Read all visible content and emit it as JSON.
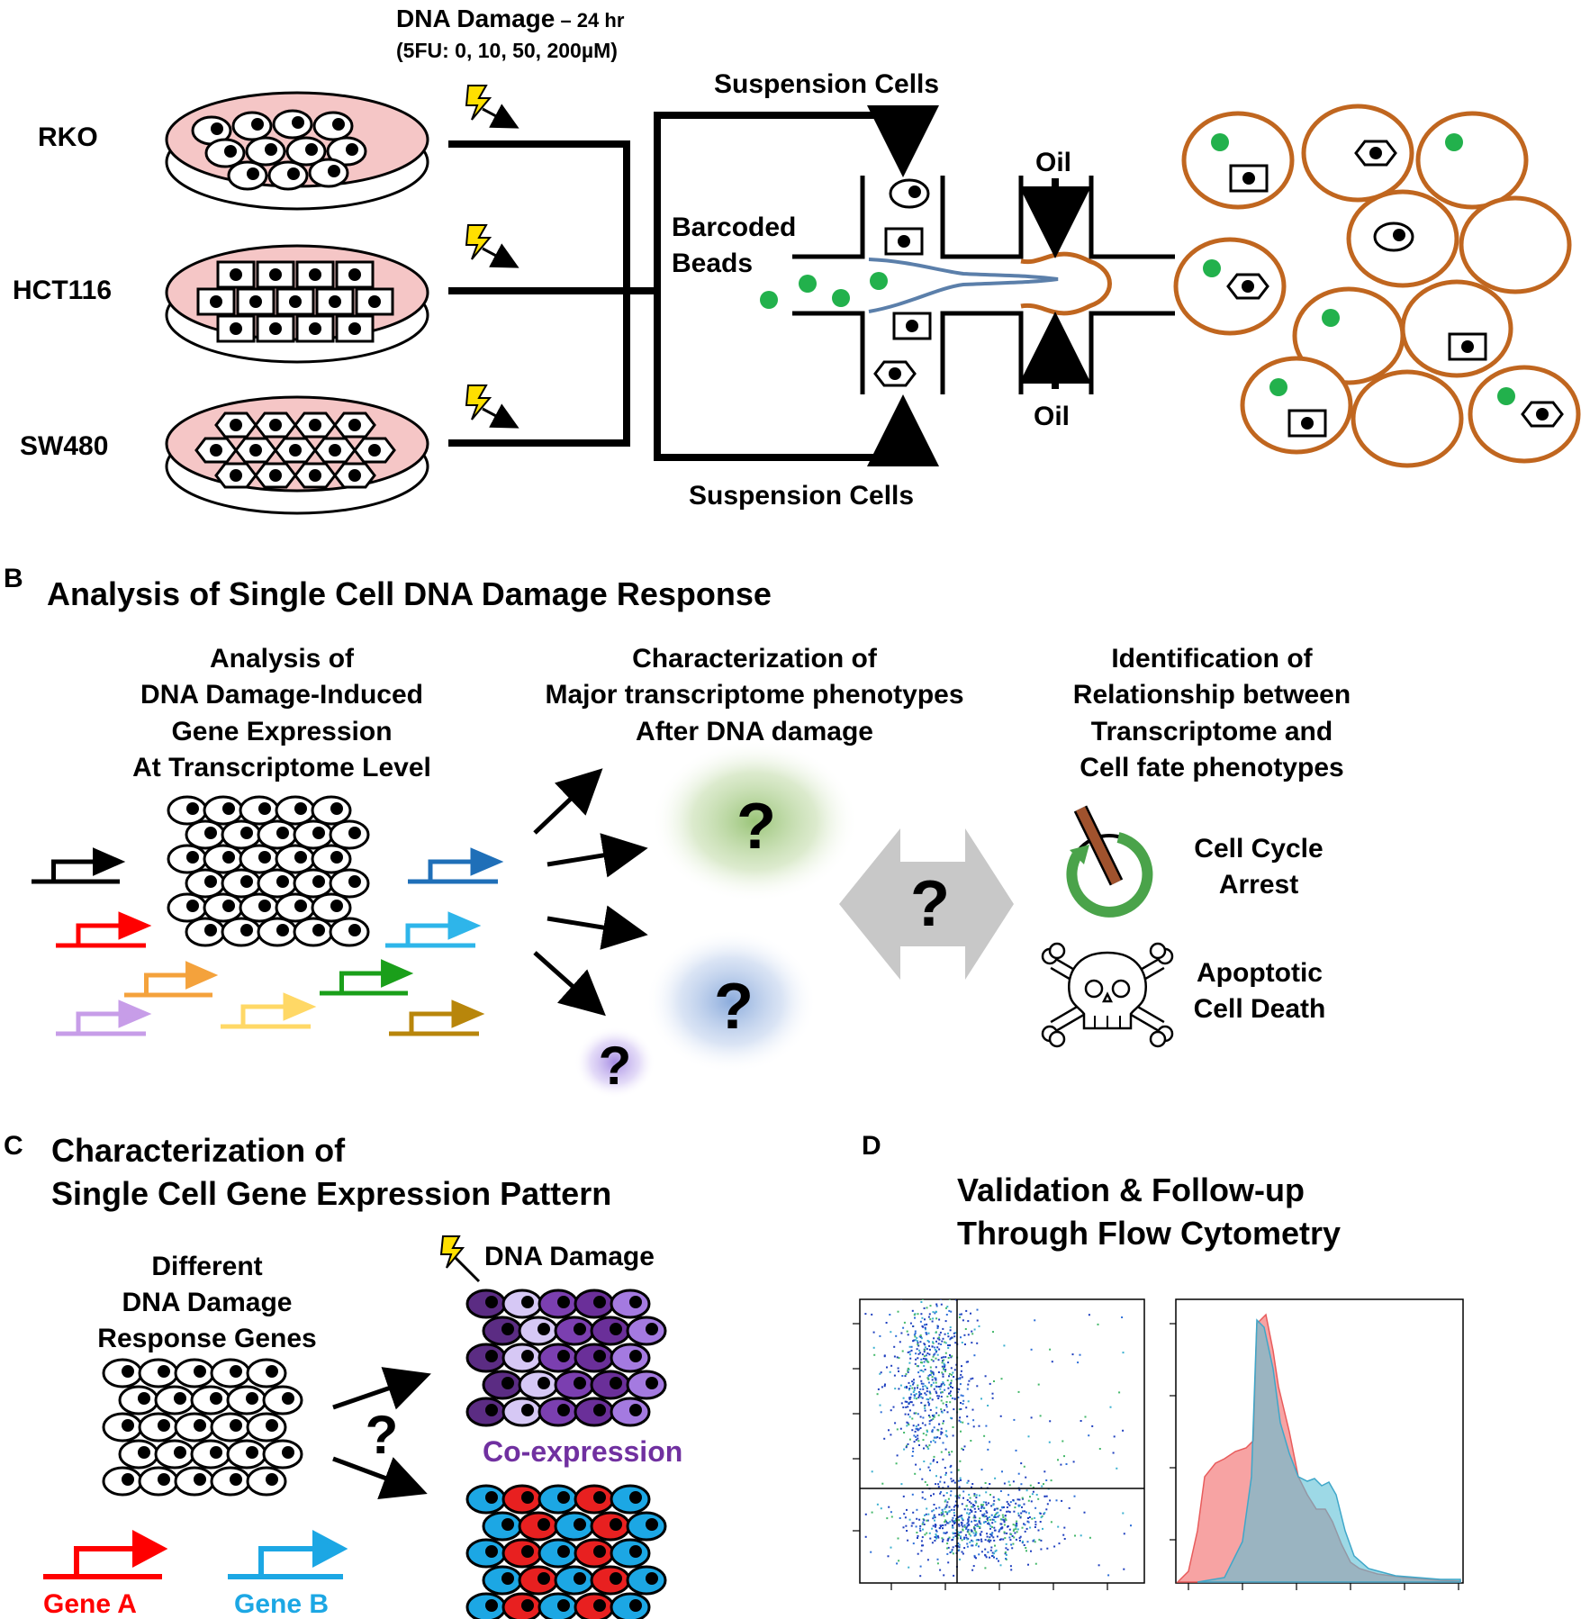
{
  "panel_a": {
    "dna_damage_title": "DNA Damage",
    "dna_damage_time": " – 24 hr",
    "dose_text": "(5FU: 0, 10, 50, 200µM)",
    "cell_lines": [
      "RKO",
      "HCT116",
      "SW480"
    ],
    "suspension_top": "Suspension Cells",
    "suspension_bottom": "Suspension Cells",
    "beads_label_1": "Barcoded",
    "beads_label_2": "Beads",
    "oil_top": "Oil",
    "oil_bottom": "Oil"
  },
  "panel_b": {
    "letter": "B",
    "title": "Analysis of Single Cell DNA Damage Response",
    "col1_lines": [
      "Analysis of",
      "DNA Damage-Induced",
      "Gene Expression",
      "At Transcriptome Level"
    ],
    "col2_lines": [
      "Characterization of",
      "Major transcriptome phenotypes",
      "After DNA damage"
    ],
    "col3_lines": [
      "Identification of",
      "Relationship between",
      "Transcriptome and",
      "Cell fate phenotypes"
    ],
    "question_mark": "?",
    "arrest_lines": [
      "Cell Cycle",
      "Arrest"
    ],
    "death_lines": [
      "Apoptotic",
      "Cell Death"
    ]
  },
  "panel_c": {
    "letter": "C",
    "title_lines": [
      "Characterization of",
      "Single Cell Gene Expression Pattern"
    ],
    "genes_lines": [
      "Different",
      "DNA Damage",
      "Response Genes"
    ],
    "dna_damage": "DNA Damage",
    "coexpression": "Co-expression",
    "question_mark": "?",
    "gene_a": "Gene A",
    "gene_b": "Gene B"
  },
  "panel_d": {
    "letter": "D",
    "title_lines": [
      "Validation & Follow-up",
      "Through Flow Cytometry"
    ]
  },
  "colors": {
    "dish_fill": "#f5c6c6",
    "droplet_border": "#c0661f",
    "bead_green": "#22b14c",
    "channel_blue": "#5b7faa",
    "coexpr_purple": "#7030a0",
    "gene_a_red": "#ff0000",
    "gene_b_blue": "#1ca7e4",
    "hist_red": "#f47c7c",
    "hist_blue": "#5bbfd6"
  },
  "icons": [
    "lightning-icon",
    "clock-icon",
    "skull-crossbones-icon",
    "promoter-arrow-icon"
  ]
}
